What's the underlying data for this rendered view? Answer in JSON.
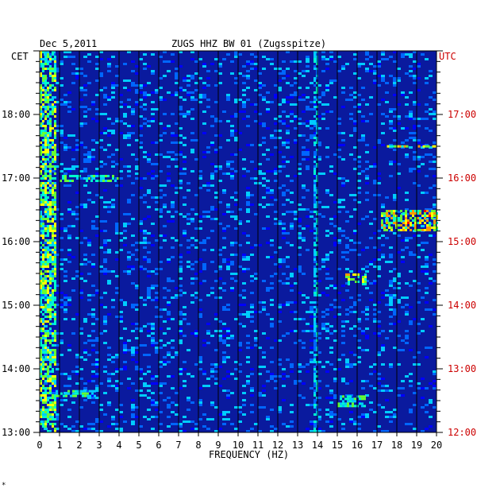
{
  "chart_data": {
    "type": "heatmap",
    "date": "Dec 5,2011",
    "title": "ZUGS HHZ BW 01 (Zugsspitze)",
    "left_axis_label": "CET",
    "right_axis_label": "UTC",
    "xlabel": "FREQUENCY (HZ)",
    "x_ticks": [
      "0",
      "1",
      "2",
      "3",
      "4",
      "5",
      "6",
      "7",
      "8",
      "9",
      "10",
      "11",
      "12",
      "13",
      "14",
      "15",
      "16",
      "17",
      "18",
      "19",
      "20"
    ],
    "xlim": [
      0,
      20
    ],
    "cet_ticks": [
      "18:00",
      "17:00",
      "16:00",
      "15:00",
      "14:00",
      "13:00"
    ],
    "utc_ticks": [
      "17:00",
      "16:00",
      "15:00",
      "14:00",
      "13:00",
      "12:00"
    ],
    "time_range_cet": [
      "13:00",
      "19:00"
    ],
    "colormap": [
      "#0000aa",
      "#0000ff",
      "#0066ff",
      "#00ccff",
      "#00ffcc",
      "#66ff33",
      "#ffff00",
      "#ff9900",
      "#ff0000"
    ],
    "background_color": "#0a1a9e",
    "features": [
      {
        "name": "low-frequency band",
        "freq_hz": [
          0,
          0.8
        ],
        "time_cet": [
          "13:00",
          "19:00"
        ],
        "level": 0.7
      },
      {
        "name": "14 Hz line",
        "freq_hz": [
          13.8,
          14.0
        ],
        "time_cet": [
          "13:00",
          "19:00"
        ],
        "level": 0.45
      },
      {
        "name": "burst",
        "freq_hz": [
          17.2,
          20
        ],
        "time_cet": [
          "16:10",
          "16:30"
        ],
        "level": 0.85
      },
      {
        "name": "burst",
        "freq_hz": [
          17.5,
          20
        ],
        "time_cet": [
          "17:29",
          "17:31"
        ],
        "level": 0.8
      },
      {
        "name": "burst",
        "freq_hz": [
          15.4,
          16.4
        ],
        "time_cet": [
          "15:20",
          "15:30"
        ],
        "level": 0.75
      },
      {
        "name": "burst",
        "freq_hz": [
          15.0,
          16.4
        ],
        "time_cet": [
          "13:25",
          "13:35"
        ],
        "level": 0.6
      },
      {
        "name": "burst",
        "freq_hz": [
          1.0,
          4.0
        ],
        "time_cet": [
          "16:58",
          "17:03"
        ],
        "level": 0.6
      },
      {
        "name": "burst",
        "freq_hz": [
          0.8,
          2.8
        ],
        "time_cet": [
          "13:35",
          "13:40"
        ],
        "level": 0.55
      }
    ],
    "grid": true
  },
  "footer_mark": "*"
}
